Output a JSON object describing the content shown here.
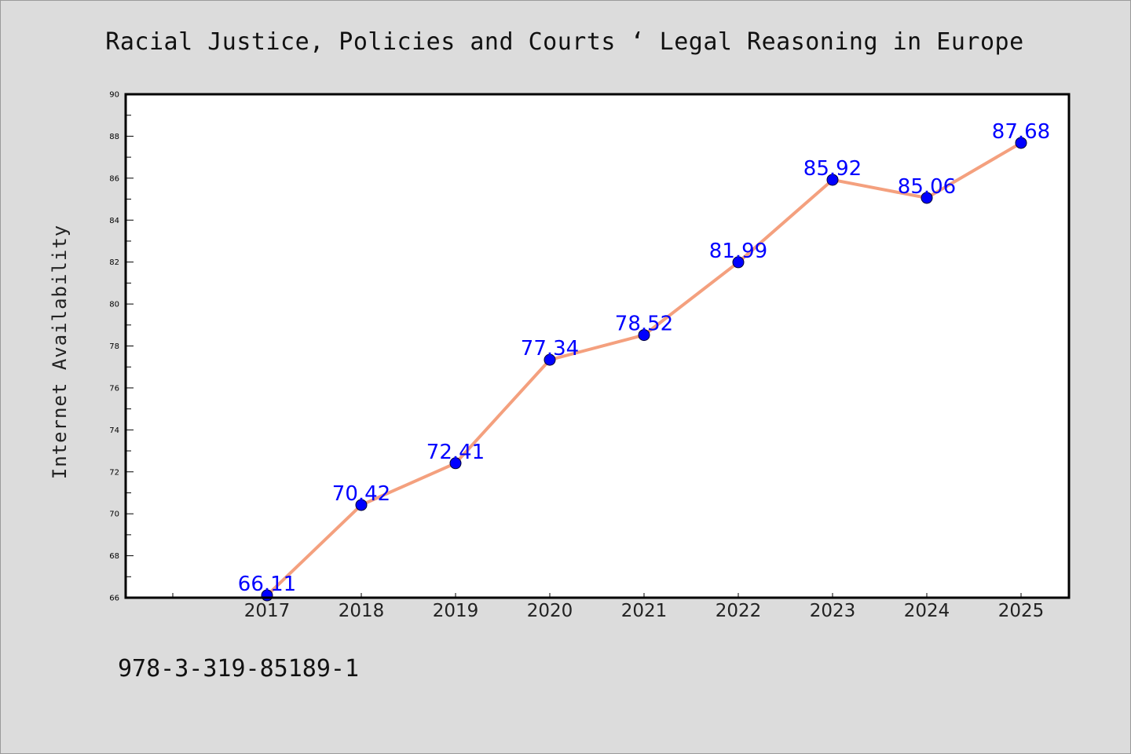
{
  "chart_data": {
    "type": "line",
    "title": "Racial Justice, Policies and Courts ‘ Legal Reasoning in Europe",
    "xlabel": "",
    "ylabel": "Internet Availability",
    "categories": [
      "2017",
      "2018",
      "2019",
      "2020",
      "2021",
      "2022",
      "2023",
      "2024",
      "2025"
    ],
    "series": [
      {
        "values": [
          66.11,
          70.42,
          72.41,
          77.34,
          78.52,
          81.99,
          85.92,
          85.06,
          87.68
        ],
        "labels": [
          "66.11",
          "70.42",
          "72.41",
          "77.34",
          "78.52",
          "81.99",
          "85.92",
          "85.06",
          "87.68"
        ],
        "line_color": "#f4a07e",
        "marker_color": "#0000ff"
      }
    ],
    "ylim": [
      66,
      90
    ],
    "yticks": [
      "66",
      "68",
      "70",
      "72",
      "74",
      "76",
      "78",
      "80",
      "82",
      "84",
      "86",
      "88",
      "90"
    ],
    "grid": false,
    "legend": "none",
    "label_color": "#0000ff"
  },
  "footer": {
    "isbn": "978-3-319-85189-1"
  }
}
